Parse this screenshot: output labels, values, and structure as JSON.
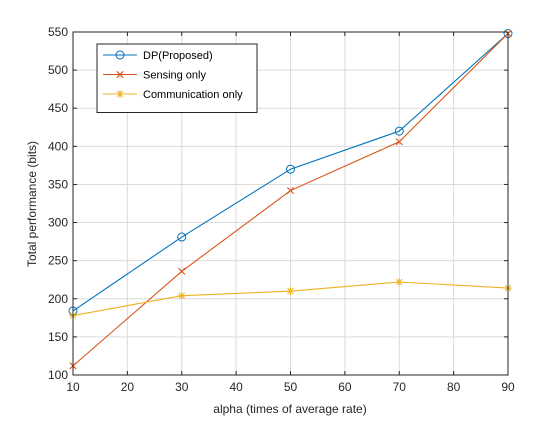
{
  "chart_data": {
    "type": "line",
    "title": "",
    "xlabel": "alpha (times of average rate)",
    "ylabel": "Total performance (bits)",
    "xlim": [
      10,
      90
    ],
    "ylim": [
      100,
      550
    ],
    "xticks": [
      10,
      20,
      30,
      40,
      50,
      60,
      70,
      80,
      90
    ],
    "yticks": [
      100,
      150,
      200,
      250,
      300,
      350,
      400,
      450,
      500,
      550
    ],
    "grid": true,
    "legend_position": "top-left",
    "x": [
      10,
      30,
      50,
      70,
      90
    ],
    "series": [
      {
        "name": "DP(Proposed)",
        "values": [
          184,
          281,
          370,
          420,
          548
        ],
        "color": "#0072BD",
        "marker": "circle"
      },
      {
        "name": "Sensing only",
        "values": [
          112,
          236,
          342,
          406,
          548
        ],
        "color": "#D95319",
        "marker": "x"
      },
      {
        "name": "Communication only",
        "values": [
          178,
          204,
          210,
          222,
          214
        ],
        "color": "#EDB120",
        "marker": "star"
      }
    ]
  }
}
